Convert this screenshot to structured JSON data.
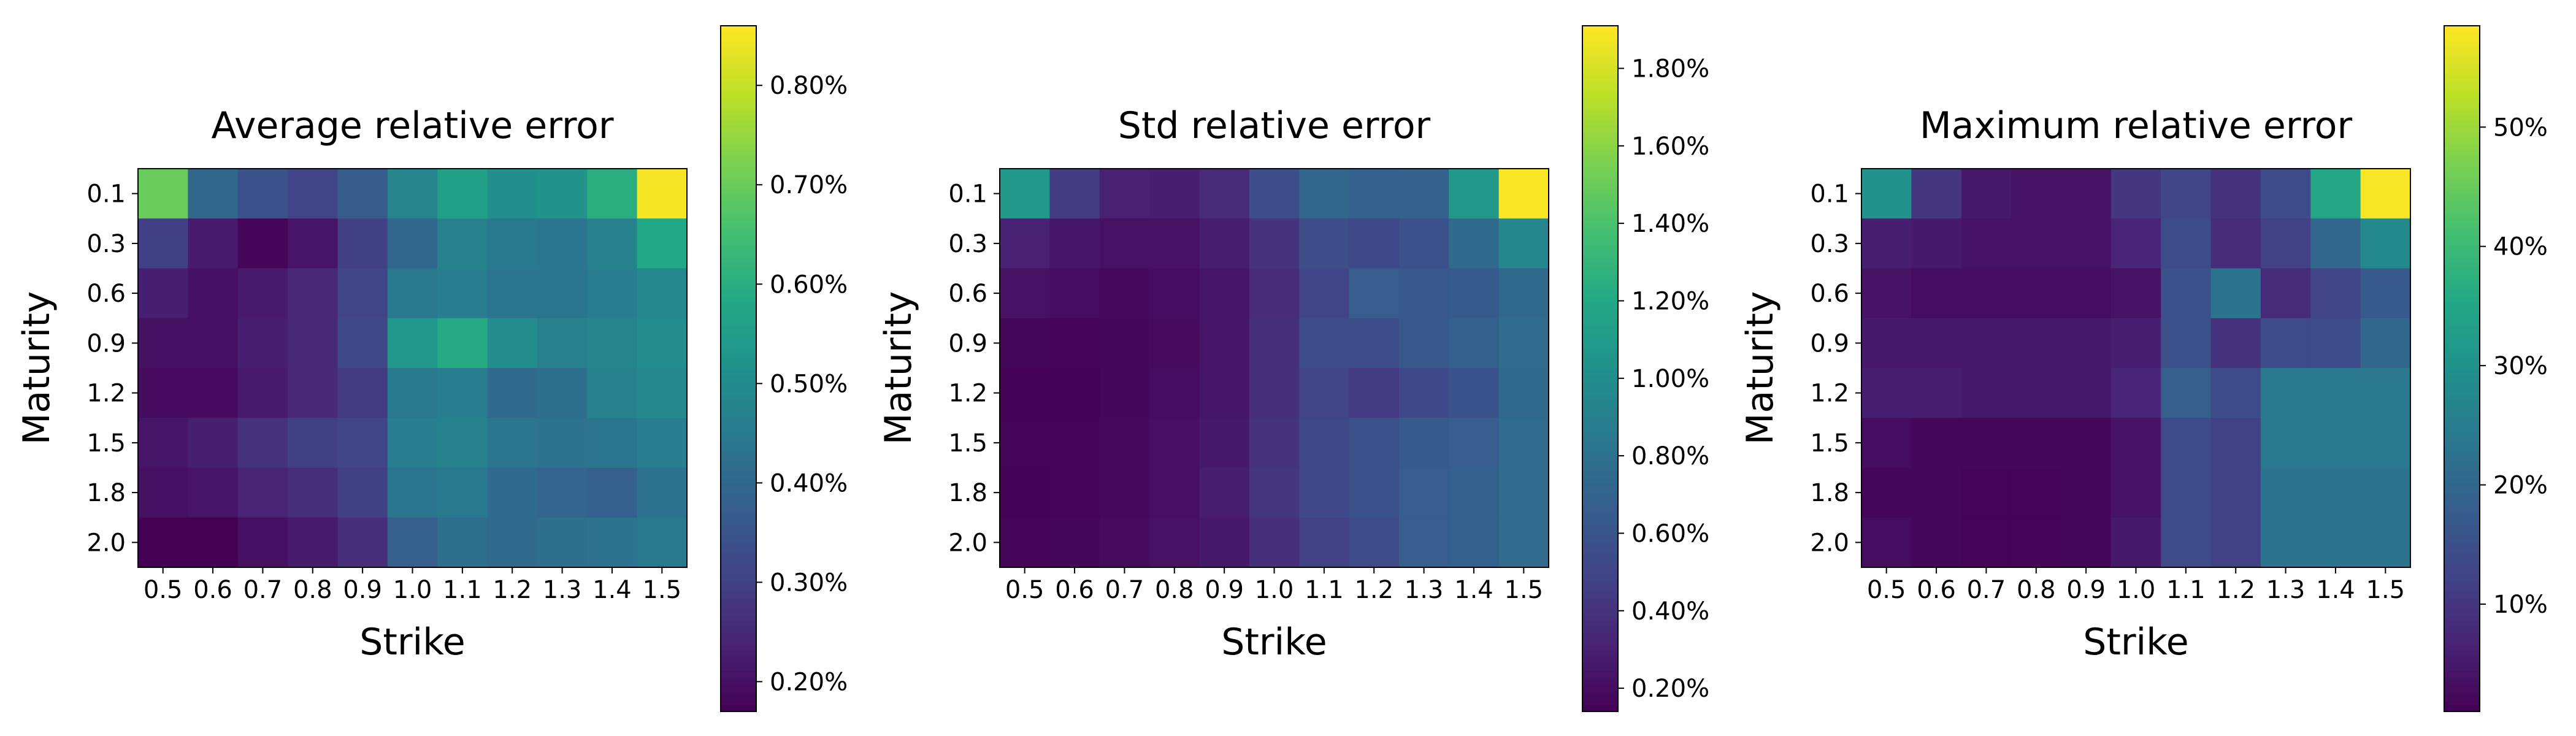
{
  "chart_data": [
    {
      "type": "heatmap",
      "title": "Average relative error",
      "xlabel": "Strike",
      "ylabel": "Maturity",
      "x": [
        "0.5",
        "0.6",
        "0.7",
        "0.8",
        "0.9",
        "1.0",
        "1.1",
        "1.2",
        "1.3",
        "1.4",
        "1.5"
      ],
      "y": [
        "0.1",
        "0.3",
        "0.6",
        "0.9",
        "1.2",
        "1.5",
        "1.8",
        "2.0"
      ],
      "values_percent": [
        [
          0.7,
          0.4,
          0.34,
          0.31,
          0.37,
          0.48,
          0.56,
          0.51,
          0.52,
          0.6,
          0.85
        ],
        [
          0.3,
          0.22,
          0.18,
          0.21,
          0.3,
          0.4,
          0.47,
          0.45,
          0.44,
          0.47,
          0.58
        ],
        [
          0.23,
          0.2,
          0.22,
          0.25,
          0.31,
          0.45,
          0.46,
          0.44,
          0.44,
          0.46,
          0.49
        ],
        [
          0.2,
          0.2,
          0.23,
          0.25,
          0.32,
          0.53,
          0.59,
          0.5,
          0.47,
          0.48,
          0.5
        ],
        [
          0.19,
          0.19,
          0.22,
          0.25,
          0.29,
          0.45,
          0.46,
          0.41,
          0.42,
          0.47,
          0.49
        ],
        [
          0.21,
          0.23,
          0.27,
          0.3,
          0.31,
          0.46,
          0.47,
          0.44,
          0.43,
          0.44,
          0.46
        ],
        [
          0.2,
          0.21,
          0.24,
          0.26,
          0.3,
          0.44,
          0.45,
          0.41,
          0.39,
          0.38,
          0.43
        ],
        [
          0.17,
          0.17,
          0.2,
          0.22,
          0.26,
          0.38,
          0.42,
          0.41,
          0.42,
          0.43,
          0.45
        ]
      ],
      "colorbar": {
        "min": 0.17,
        "max": 0.86,
        "ticks": [
          0.2,
          0.3,
          0.4,
          0.5,
          0.6,
          0.7,
          0.8
        ],
        "tick_labels": [
          "0.20%",
          "0.30%",
          "0.40%",
          "0.50%",
          "0.60%",
          "0.70%",
          "0.80%"
        ]
      },
      "colormap": "viridis"
    },
    {
      "type": "heatmap",
      "title": "Std relative error",
      "xlabel": "Strike",
      "ylabel": "Maturity",
      "x": [
        "0.5",
        "0.6",
        "0.7",
        "0.8",
        "0.9",
        "1.0",
        "1.1",
        "1.2",
        "1.3",
        "1.4",
        "1.5"
      ],
      "y": [
        "0.1",
        "0.3",
        "0.6",
        "0.9",
        "1.2",
        "1.5",
        "1.8",
        "2.0"
      ],
      "values_percent": [
        [
          1.08,
          0.45,
          0.3,
          0.29,
          0.35,
          0.55,
          0.72,
          0.68,
          0.69,
          1.08,
          1.9
        ],
        [
          0.3,
          0.25,
          0.22,
          0.22,
          0.28,
          0.4,
          0.56,
          0.52,
          0.58,
          0.75,
          0.95
        ],
        [
          0.22,
          0.2,
          0.18,
          0.2,
          0.24,
          0.36,
          0.5,
          0.66,
          0.62,
          0.64,
          0.74
        ],
        [
          0.17,
          0.16,
          0.17,
          0.19,
          0.24,
          0.38,
          0.54,
          0.55,
          0.62,
          0.68,
          0.76
        ],
        [
          0.15,
          0.15,
          0.17,
          0.2,
          0.25,
          0.38,
          0.5,
          0.44,
          0.52,
          0.6,
          0.74
        ],
        [
          0.16,
          0.16,
          0.18,
          0.21,
          0.26,
          0.4,
          0.52,
          0.58,
          0.64,
          0.66,
          0.76
        ],
        [
          0.15,
          0.16,
          0.18,
          0.21,
          0.28,
          0.42,
          0.52,
          0.58,
          0.66,
          0.68,
          0.76
        ],
        [
          0.16,
          0.17,
          0.19,
          0.22,
          0.26,
          0.38,
          0.48,
          0.54,
          0.66,
          0.68,
          0.76
        ]
      ],
      "colorbar": {
        "min": 0.14,
        "max": 1.91,
        "ticks": [
          0.2,
          0.4,
          0.6,
          0.8,
          1.0,
          1.2,
          1.4,
          1.6,
          1.8
        ],
        "tick_labels": [
          "0.20%",
          "0.40%",
          "0.60%",
          "0.80%",
          "1.00%",
          "1.20%",
          "1.40%",
          "1.60%",
          "1.80%"
        ]
      },
      "colormap": "viridis"
    },
    {
      "type": "heatmap",
      "title": "Maximum relative error",
      "xlabel": "Strike",
      "ylabel": "Maturity",
      "x": [
        "0.5",
        "0.6",
        "0.7",
        "0.8",
        "0.9",
        "1.0",
        "1.1",
        "1.2",
        "1.3",
        "1.4",
        "1.5"
      ],
      "y": [
        "0.1",
        "0.3",
        "0.6",
        "0.9",
        "1.2",
        "1.5",
        "1.8",
        "2.0"
      ],
      "values_percent": [
        [
          30,
          10,
          5,
          4,
          4,
          10,
          13,
          9,
          14,
          35,
          58
        ],
        [
          6,
          5,
          4,
          4,
          4,
          7,
          14,
          8,
          12,
          20,
          28
        ],
        [
          4,
          3,
          3,
          3,
          3,
          4,
          15,
          23,
          8,
          13,
          17
        ],
        [
          5,
          5,
          5,
          5,
          5,
          6,
          15,
          9,
          14,
          14,
          20
        ],
        [
          6,
          6,
          5,
          5,
          5,
          7,
          18,
          14,
          24,
          24,
          24
        ],
        [
          3,
          2,
          2,
          2,
          2,
          4,
          14,
          12,
          24,
          24,
          24
        ],
        [
          2,
          2,
          1.5,
          1.5,
          2,
          4,
          14,
          12,
          23,
          23,
          23
        ],
        [
          3,
          2,
          1.5,
          1.5,
          2,
          5,
          14,
          12,
          23,
          23,
          23
        ]
      ],
      "colorbar": {
        "min": 1,
        "max": 58.5,
        "ticks": [
          10,
          20,
          30,
          40,
          50
        ],
        "tick_labels": [
          "10%",
          "20%",
          "30%",
          "40%",
          "50%"
        ]
      },
      "colormap": "viridis"
    }
  ]
}
